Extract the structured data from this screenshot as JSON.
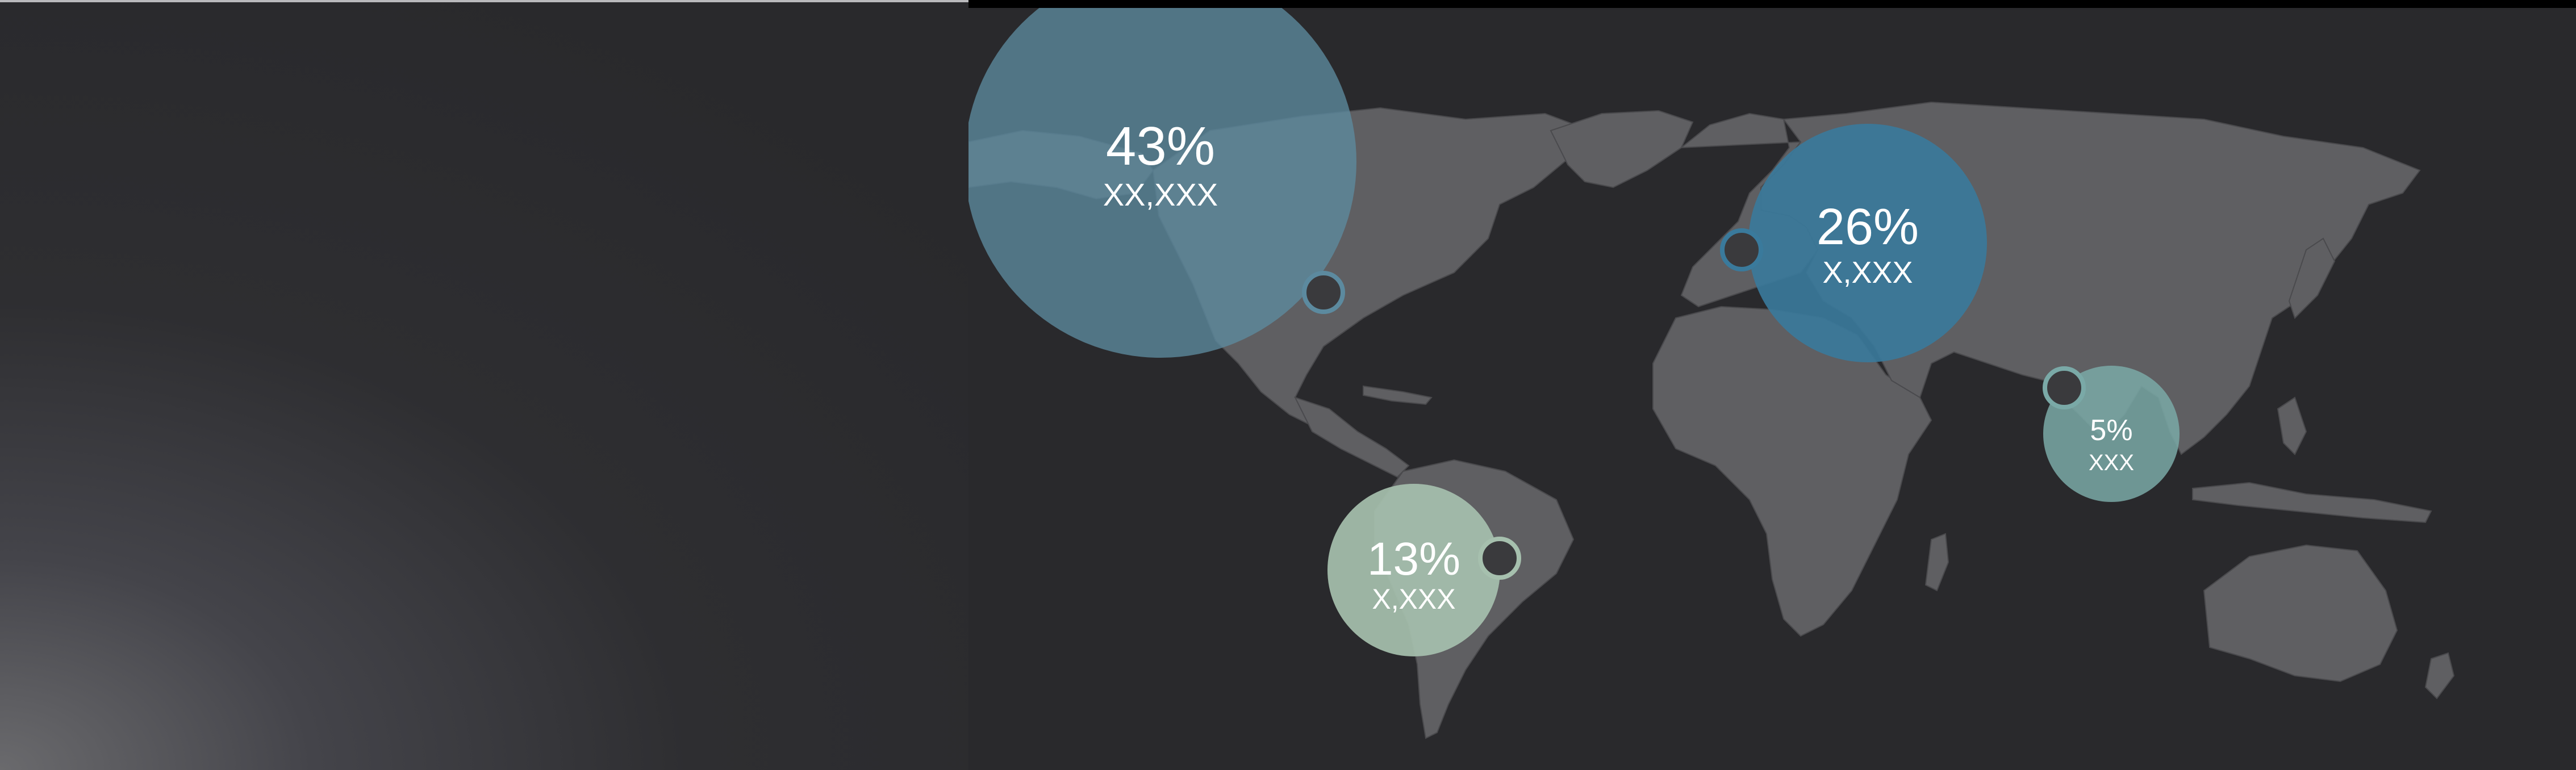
{
  "colors": {
    "land": "#5f5f62",
    "land_border": "#4a4a4d",
    "background": "#29292c",
    "marker_fill": "#3a3a3d"
  },
  "chart_data": {
    "type": "bubble-map",
    "title": "",
    "series": [
      {
        "region": "North America",
        "percent_label": "43%",
        "count_label": "XX,XXX",
        "value": 43,
        "color": "#5c8a9f"
      },
      {
        "region": "Europe",
        "percent_label": "26%",
        "count_label": "X,XXX",
        "value": 26,
        "color": "#3a7a9c"
      },
      {
        "region": "South America",
        "percent_label": "13%",
        "count_label": "X,XXX",
        "value": 13,
        "color": "#a6c0ae"
      },
      {
        "region": "South Asia",
        "percent_label": "5%",
        "count_label": "XXX",
        "value": 5,
        "color": "#7aa9a7"
      }
    ]
  }
}
